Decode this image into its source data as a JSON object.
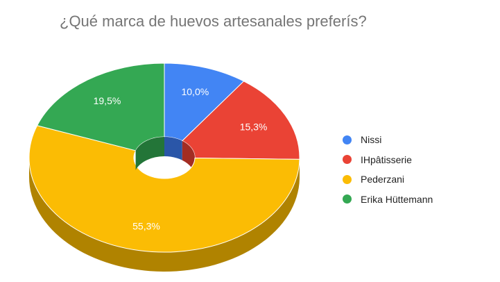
{
  "chart_data": {
    "type": "pie",
    "variant": "3d-donut",
    "title": "¿Qué marca de huevos artesanales preferís?",
    "series": [
      {
        "name": "Nissi",
        "value": 10.0,
        "label": "10,0%",
        "color": "#4285f4",
        "side_color": "#2a56a8"
      },
      {
        "name": "IHpâtisserie",
        "value": 15.3,
        "label": "15,3%",
        "color": "#ea4335",
        "side_color": "#a32d23"
      },
      {
        "name": "Pederzani",
        "value": 55.3,
        "label": "55,3%",
        "color": "#fbbc04",
        "side_color": "#b08300"
      },
      {
        "name": "Erika Hüttemann",
        "value": 19.5,
        "label": "19,5%",
        "color": "#34a853",
        "side_color": "#237538"
      }
    ],
    "legend_position": "right"
  }
}
